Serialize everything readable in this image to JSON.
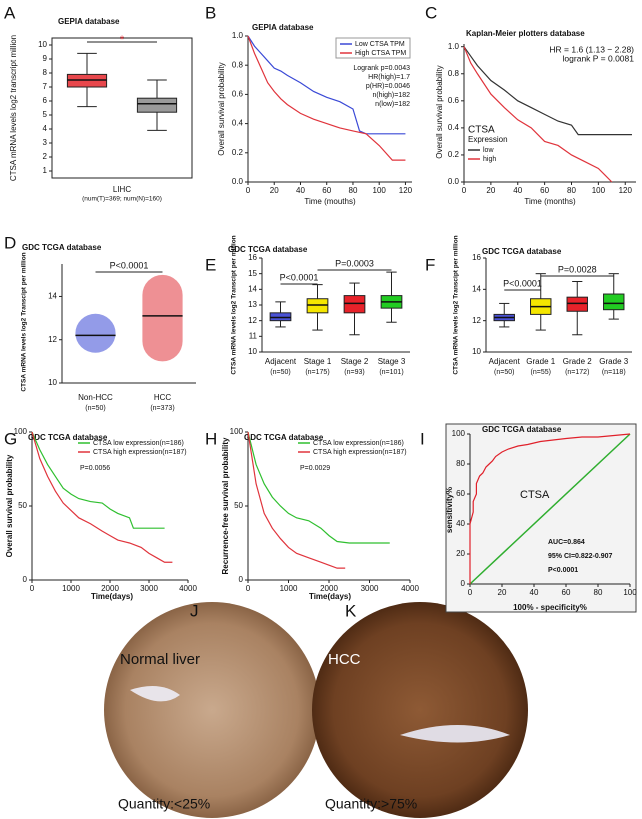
{
  "chart_data": [
    {
      "panel": "A",
      "type": "box",
      "title": "GEPIA database",
      "ylabel": "CTSA mRNA levels log2 transcript million",
      "xlabel": "LIHC",
      "xsublabel": "(num(T)=369; num(N)=160)",
      "ylim": [
        0.5,
        10.5
      ],
      "yticks": [
        1,
        2,
        3,
        4,
        5,
        6,
        7,
        8,
        9,
        10
      ],
      "boxes": [
        {
          "min": 5.6,
          "q1": 7.0,
          "median": 7.5,
          "q3": 7.9,
          "max": 9.4
        },
        {
          "min": 3.9,
          "q1": 5.2,
          "median": 5.8,
          "q3": 6.2,
          "max": 7.5
        }
      ],
      "colors": [
        "#e8474c",
        "#9a9a9a"
      ],
      "annotations": [
        "*"
      ]
    },
    {
      "panel": "B",
      "type": "km",
      "title": "GEPIA database",
      "ylabel": "Overall survival probability",
      "xlabel": "Time (mouths)",
      "xlim": [
        0,
        125
      ],
      "xticks": [
        0,
        20,
        40,
        60,
        80,
        100,
        120
      ],
      "ylim": [
        0,
        1
      ],
      "yticks": [
        {
          "value": 0,
          "label": "0.0"
        },
        0.2,
        0.4,
        0.6,
        0.8,
        {
          "value": 1,
          "label": "1.0"
        }
      ],
      "legend": "upper right",
      "series": [
        {
          "name": "Low CTSA TPM",
          "color": "#3a49d6",
          "x": [
            0,
            5,
            10,
            15,
            20,
            25,
            30,
            40,
            50,
            60,
            70,
            80,
            85,
            90,
            100,
            110,
            120
          ],
          "y": [
            1,
            0.93,
            0.88,
            0.83,
            0.78,
            0.76,
            0.73,
            0.68,
            0.62,
            0.58,
            0.55,
            0.5,
            0.35,
            0.33,
            0.33,
            0.33,
            0.33
          ]
        },
        {
          "name": "High CTSA TPM",
          "color": "#e0343c",
          "x": [
            0,
            5,
            10,
            15,
            20,
            25,
            30,
            40,
            50,
            60,
            70,
            80,
            90,
            100,
            110,
            120
          ],
          "y": [
            1,
            0.88,
            0.78,
            0.68,
            0.62,
            0.57,
            0.53,
            0.47,
            0.43,
            0.4,
            0.37,
            0.35,
            0.33,
            0.25,
            0.15,
            0.15
          ]
        }
      ],
      "annotations": [
        "Logrank p=0.0043",
        "HR(high)=1.7",
        "p(HR)=0.0046",
        "n(high)=182",
        "n(low)=182"
      ]
    },
    {
      "panel": "C",
      "type": "km",
      "title": "Kaplan-Meier plotters database",
      "ylabel": "Overall survival probability",
      "xlabel": "Time (months)",
      "xlim": [
        0,
        128
      ],
      "xticks": [
        0,
        20,
        40,
        60,
        80,
        100,
        120
      ],
      "ylim": [
        0,
        1.02
      ],
      "yticks": [
        {
          "value": 0,
          "label": "0.0"
        },
        0.2,
        0.4,
        0.6,
        0.8,
        {
          "value": 1,
          "label": "1.0"
        }
      ],
      "legend": "lower left",
      "legend_title": "CTSA",
      "legend_subtitle": "Expression",
      "series": [
        {
          "name": "low",
          "color": "#333333",
          "x": [
            0,
            5,
            10,
            20,
            30,
            40,
            50,
            60,
            70,
            80,
            85,
            90,
            100,
            110,
            120,
            125
          ],
          "y": [
            1,
            0.93,
            0.86,
            0.75,
            0.68,
            0.6,
            0.55,
            0.5,
            0.45,
            0.42,
            0.35,
            0.35,
            0.35,
            0.35,
            0.35,
            0.35
          ]
        },
        {
          "name": "high",
          "color": "#e0343c",
          "x": [
            0,
            5,
            10,
            20,
            30,
            40,
            50,
            60,
            70,
            80,
            90,
            100,
            105,
            110
          ],
          "y": [
            1,
            0.88,
            0.8,
            0.65,
            0.55,
            0.46,
            0.4,
            0.3,
            0.27,
            0.2,
            0.15,
            0.1,
            0.05,
            0
          ]
        }
      ],
      "annotations": [
        "HR = 1.6 (1.13 − 2.28)",
        "logrank P = 0.0081"
      ]
    },
    {
      "panel": "D",
      "type": "dot",
      "title": "GDC TCGA database",
      "ylabel": "CTSA mRNA levels log2 Transcipt per million",
      "ylim": [
        10,
        15.5
      ],
      "yticks": [
        10,
        12,
        14
      ],
      "categories": [
        "Non-HCC",
        "HCC"
      ],
      "category_notes": [
        "(n=50)",
        "(n=373)"
      ],
      "values": [
        12.2,
        13.1
      ],
      "ranges": [
        [
          11.4,
          13.2
        ],
        [
          11.0,
          15.0
        ]
      ],
      "colors": [
        "#3a49d6",
        "#e0343c"
      ],
      "annotations": [
        "P<0.0001"
      ]
    },
    {
      "panel": "E",
      "type": "box",
      "title": "GDC TCGA database",
      "ylabel": "CTSA mRNA levels log2 Transcipt per million",
      "ylim": [
        10,
        16
      ],
      "yticks": [
        10,
        11,
        12,
        13,
        14,
        15,
        16
      ],
      "categories": [
        "Adjacent",
        "Stage 1",
        "Stage 2",
        "Stage 3"
      ],
      "category_notes": [
        "(n=50)",
        "(n=175)",
        "(n=93)",
        "(n=101)"
      ],
      "boxes": [
        {
          "min": 11.6,
          "q1": 12.0,
          "median": 12.2,
          "q3": 12.5,
          "max": 13.2
        },
        {
          "min": 11.4,
          "q1": 12.5,
          "median": 13.0,
          "q3": 13.4,
          "max": 14.3
        },
        {
          "min": 11.1,
          "q1": 12.5,
          "median": 13.1,
          "q3": 13.6,
          "max": 14.4
        },
        {
          "min": 11.9,
          "q1": 12.8,
          "median": 13.2,
          "q3": 13.6,
          "max": 15.1
        }
      ],
      "colors": [
        "#4a52d6",
        "#f5e600",
        "#e8222a",
        "#22cc22"
      ],
      "annotations": [
        "P<0.0001",
        "P=0.0003"
      ]
    },
    {
      "panel": "F",
      "type": "box",
      "title": "GDC TCGA database",
      "ylabel": "CTSA mRNA levels log2 Transcipt per million",
      "ylim": [
        10,
        16
      ],
      "yticks": [
        10,
        12,
        14,
        16
      ],
      "categories": [
        "Adjacent",
        "Grade 1",
        "Grade 2",
        "Grade 3"
      ],
      "category_notes": [
        "(n=50)",
        "(n=55)",
        "(n=172)",
        "(n=118)"
      ],
      "boxes": [
        {
          "min": 11.6,
          "q1": 12.0,
          "median": 12.2,
          "q3": 12.4,
          "max": 13.1
        },
        {
          "min": 11.4,
          "q1": 12.4,
          "median": 12.9,
          "q3": 13.4,
          "max": 15.0
        },
        {
          "min": 11.1,
          "q1": 12.6,
          "median": 13.1,
          "q3": 13.5,
          "max": 14.5
        },
        {
          "min": 12.1,
          "q1": 12.7,
          "median": 13.1,
          "q3": 13.7,
          "max": 15.0
        }
      ],
      "colors": [
        "#4a52d6",
        "#f5e600",
        "#e8222a",
        "#22cc22"
      ],
      "annotations": [
        "P<0.0001",
        "P=0.0028"
      ]
    },
    {
      "panel": "G",
      "type": "km",
      "title": "GDC TCGA database",
      "ylabel": "Overall survival probability",
      "xlabel": "Time(days)",
      "xlim": [
        0,
        4000
      ],
      "xticks": [
        0,
        1000,
        2000,
        3000,
        4000
      ],
      "ylim": [
        0,
        100
      ],
      "yticks": [
        0,
        50,
        100
      ],
      "legend": "upper right",
      "series": [
        {
          "name": "CTSA low expression(n=186)",
          "color": "#2fbf2f",
          "x": [
            0,
            200,
            400,
            600,
            800,
            1000,
            1200,
            1500,
            1800,
            2000,
            2200,
            2500,
            2600,
            3000,
            3400
          ],
          "y": [
            100,
            88,
            78,
            70,
            62,
            58,
            55,
            53,
            52,
            48,
            45,
            42,
            35,
            35,
            35
          ]
        },
        {
          "name": "CTSA high expression(n=187)",
          "color": "#e0343c",
          "x": [
            0,
            200,
            400,
            600,
            800,
            1000,
            1200,
            1500,
            1800,
            2000,
            2200,
            2500,
            2800,
            3000,
            3200,
            3400,
            3600
          ],
          "y": [
            100,
            82,
            70,
            60,
            52,
            47,
            42,
            38,
            33,
            30,
            27,
            25,
            22,
            18,
            15,
            12,
            12
          ]
        }
      ],
      "annotations": [
        "P=0.0056"
      ]
    },
    {
      "panel": "H",
      "type": "km",
      "title": "GDC TCGA database",
      "ylabel": "Recurrence-free survival probability",
      "xlabel": "Time(days)",
      "xlim": [
        0,
        4000
      ],
      "xticks": [
        0,
        1000,
        2000,
        3000,
        4000
      ],
      "ylim": [
        0,
        100
      ],
      "yticks": [
        0,
        50,
        100
      ],
      "legend": "upper right",
      "series": [
        {
          "name": "CTSA low expression(n=186)",
          "color": "#2fbf2f",
          "x": [
            0,
            200,
            400,
            600,
            800,
            1000,
            1200,
            1500,
            1800,
            2000,
            2200,
            2500,
            3000,
            3500
          ],
          "y": [
            100,
            78,
            65,
            56,
            50,
            45,
            42,
            40,
            35,
            30,
            26,
            25,
            25,
            25
          ]
        },
        {
          "name": "CTSA high expression(n=187)",
          "color": "#e0343c",
          "x": [
            0,
            200,
            400,
            600,
            800,
            1000,
            1200,
            1500,
            1800,
            2000,
            2200,
            2400
          ],
          "y": [
            100,
            65,
            45,
            35,
            28,
            22,
            18,
            15,
            12,
            10,
            8,
            8
          ]
        }
      ],
      "annotations": [
        "P=0.0029"
      ]
    },
    {
      "panel": "I",
      "type": "roc",
      "title": "GDC TCGA database",
      "ylabel": "sensitivity%",
      "xlabel": "100% - specificity%",
      "xlim": [
        0,
        100
      ],
      "xticks": [
        0,
        20,
        40,
        60,
        80,
        100
      ],
      "ylim": [
        0,
        100
      ],
      "yticks": [
        0,
        20,
        40,
        60,
        80,
        100
      ],
      "curve_label": "CTSA",
      "series": [
        {
          "color": "#e0202a",
          "x": [
            0,
            0,
            2,
            2,
            4,
            4,
            6,
            8,
            10,
            12,
            14,
            16,
            20,
            24,
            30,
            36,
            44,
            52,
            60,
            70,
            80,
            90,
            100
          ],
          "y": [
            0,
            40,
            48,
            55,
            60,
            67,
            72,
            74,
            78,
            80,
            82,
            85,
            88,
            90,
            92,
            93,
            95,
            96,
            97,
            98,
            98,
            99,
            100
          ]
        }
      ],
      "annotations": [
        "AUC=0.864",
        "95% CI=0.822-0.907",
        "P<0.0001"
      ]
    }
  ],
  "images": [
    {
      "panel": "J",
      "label": "Normal liver",
      "quantity": "Quantity:<25%"
    },
    {
      "panel": "K",
      "label": "HCC",
      "quantity": "Quantity:>75%"
    }
  ]
}
